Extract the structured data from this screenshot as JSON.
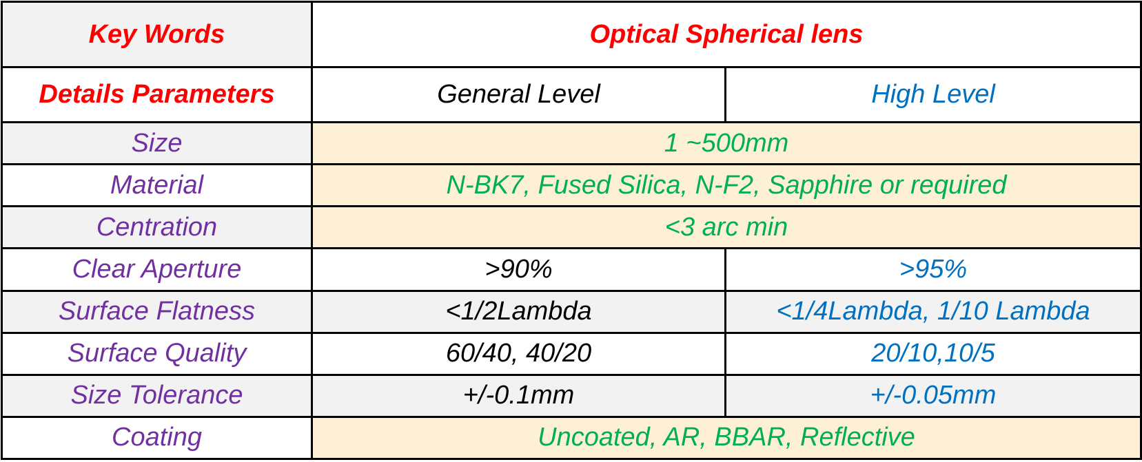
{
  "header": {
    "key_words": "Key Words",
    "product": "Optical Spherical lens"
  },
  "subheader": {
    "details_parameters": "Details Parameters",
    "general_level": "General Level",
    "high_level": "High Level"
  },
  "rows": {
    "size": {
      "param": "Size",
      "value": "1 ~500mm"
    },
    "material": {
      "param": "Material",
      "value": "N-BK7, Fused Silica, N-F2, Sapphire or required"
    },
    "centration": {
      "param": "Centration",
      "value": "<3 arc min"
    },
    "clear_aperture": {
      "param": "Clear Aperture",
      "general": ">90%",
      "high": ">95%"
    },
    "surface_flatness": {
      "param": "Surface Flatness",
      "general": "<1/2Lambda",
      "high": "<1/4Lambda, 1/10 Lambda"
    },
    "surface_quality": {
      "param": "Surface Quality",
      "general": "60/40, 40/20",
      "high": "20/10,10/5"
    },
    "size_tolerance": {
      "param": "Size Tolerance",
      "general": "+/-0.1mm",
      "high": "+/-0.05mm"
    },
    "coating": {
      "param": "Coating",
      "value": "Uncoated, AR, BBAR, Reflective"
    }
  },
  "colors": {
    "key_text": "#ff0000",
    "param_text": "#7030a0",
    "shared_value_text": "#00b050",
    "general_text": "#000000",
    "high_text": "#0070c0",
    "shared_row_background": "#fdf0d6",
    "alt_row_background": "#f2f2f2"
  }
}
